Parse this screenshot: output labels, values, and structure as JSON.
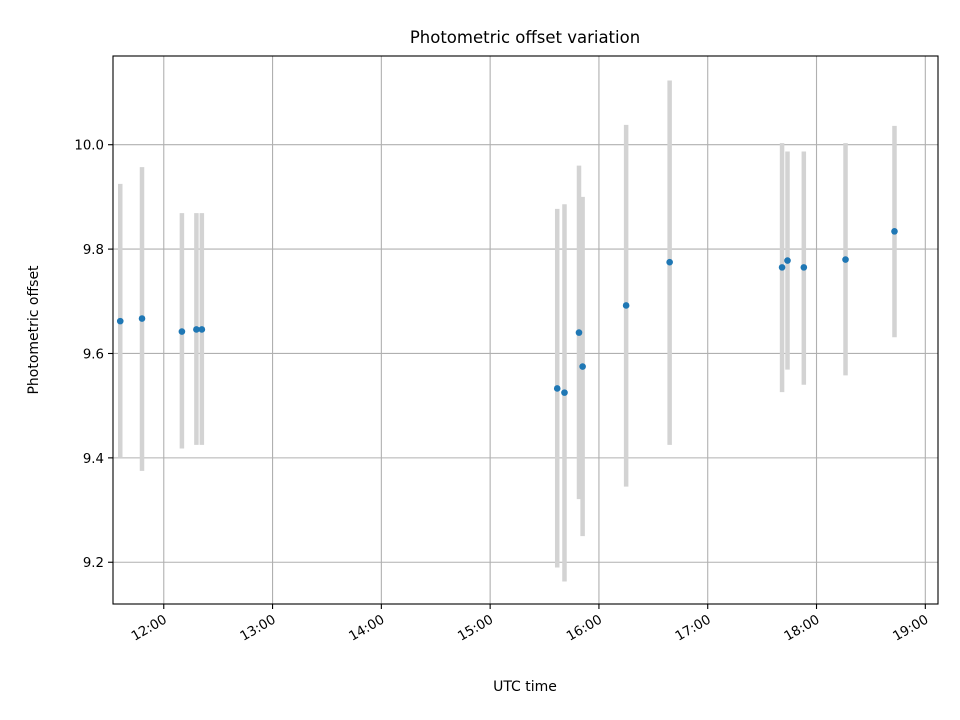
{
  "chart_data": {
    "type": "scatter",
    "title": "Photometric offset variation",
    "xlabel": "UTC time",
    "ylabel": "Photometric offset",
    "xlim": [
      "11:32",
      "19:07"
    ],
    "ylim": [
      9.12,
      10.17
    ],
    "xticks": [
      "12:00",
      "13:00",
      "14:00",
      "15:00",
      "16:00",
      "17:00",
      "18:00",
      "19:00"
    ],
    "yticks": [
      9.2,
      9.4,
      9.6,
      9.8,
      10.0
    ],
    "grid": true,
    "legend": "none",
    "colors": {
      "points": "#1f77b4",
      "error_bars": "#d3d3d3",
      "grid": "#b0b0b0"
    },
    "points": [
      {
        "x": "11:36",
        "y": 9.662,
        "y_low": 9.4,
        "y_high": 9.925
      },
      {
        "x": "11:48",
        "y": 9.667,
        "y_low": 9.375,
        "y_high": 9.957
      },
      {
        "x": "12:10",
        "y": 9.642,
        "y_low": 9.418,
        "y_high": 9.869
      },
      {
        "x": "12:18",
        "y": 9.646,
        "y_low": 9.425,
        "y_high": 9.869
      },
      {
        "x": "12:21",
        "y": 9.646,
        "y_low": 9.425,
        "y_high": 9.869
      },
      {
        "x": "15:37",
        "y": 9.533,
        "y_low": 9.19,
        "y_high": 9.877
      },
      {
        "x": "15:41",
        "y": 9.525,
        "y_low": 9.163,
        "y_high": 9.886
      },
      {
        "x": "15:49",
        "y": 9.64,
        "y_low": 9.321,
        "y_high": 9.96
      },
      {
        "x": "15:51",
        "y": 9.575,
        "y_low": 9.25,
        "y_high": 9.9
      },
      {
        "x": "16:15",
        "y": 9.692,
        "y_low": 9.345,
        "y_high": 10.038
      },
      {
        "x": "16:39",
        "y": 9.775,
        "y_low": 9.425,
        "y_high": 10.123
      },
      {
        "x": "17:41",
        "y": 9.765,
        "y_low": 9.526,
        "y_high": 10.003
      },
      {
        "x": "17:44",
        "y": 9.778,
        "y_low": 9.569,
        "y_high": 9.987
      },
      {
        "x": "17:53",
        "y": 9.765,
        "y_low": 9.54,
        "y_high": 9.987
      },
      {
        "x": "18:16",
        "y": 9.78,
        "y_low": 9.558,
        "y_high": 10.003
      },
      {
        "x": "18:43",
        "y": 9.834,
        "y_low": 9.631,
        "y_high": 10.036
      }
    ]
  }
}
